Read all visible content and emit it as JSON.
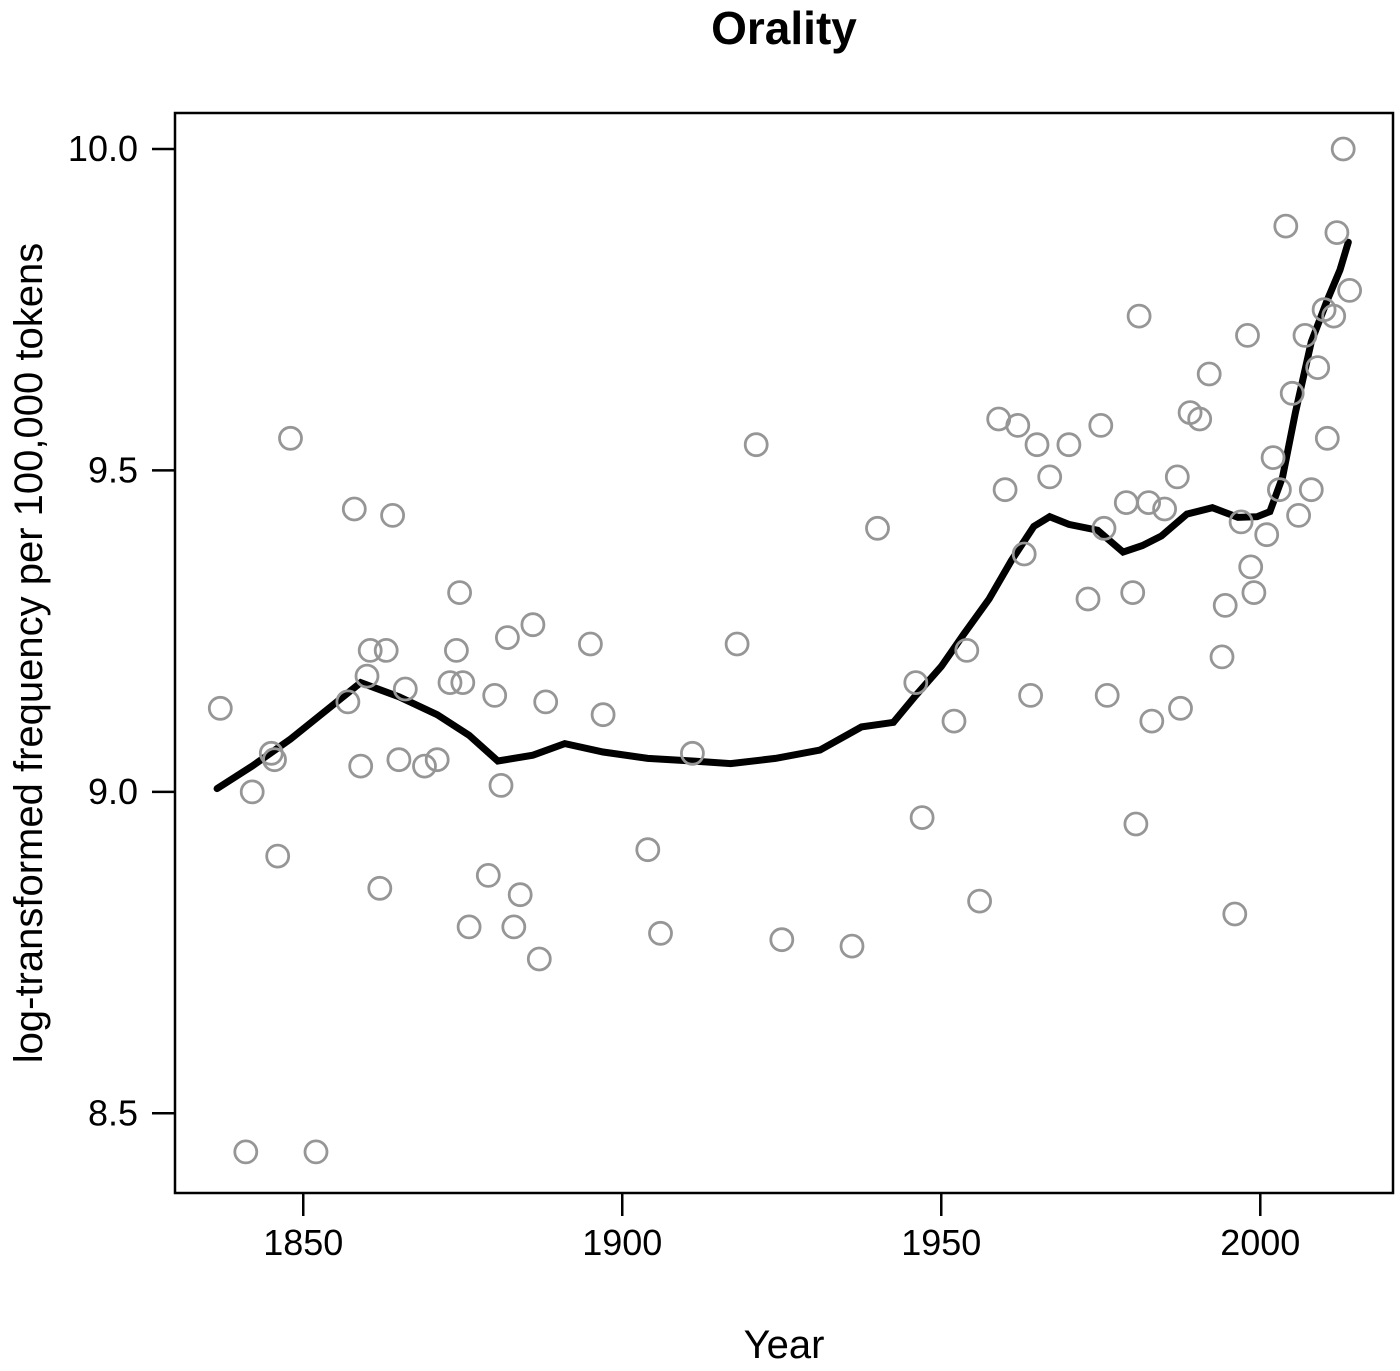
{
  "chart_data": {
    "type": "scatter",
    "title": "Orality",
    "xlabel": "Year",
    "ylabel": "log-transformed frequency per 100,000 tokens",
    "xlim": [
      1829.9,
      2020.8
    ],
    "ylim": [
      8.376,
      10.056
    ],
    "grid": false,
    "legend": "none",
    "point_color": "#969696",
    "trend_color": "#000000",
    "x_ticks": [
      {
        "value": 1850,
        "label": "1850"
      },
      {
        "value": 1900,
        "label": "1900"
      },
      {
        "value": 1950,
        "label": "1950"
      },
      {
        "value": 2000,
        "label": "2000"
      }
    ],
    "y_ticks": [
      {
        "value": 8.5,
        "label": "8.5"
      },
      {
        "value": 9.0,
        "label": "9.0"
      },
      {
        "value": 9.5,
        "label": "9.5"
      },
      {
        "value": 10.0,
        "label": "10.0"
      }
    ],
    "series": [
      {
        "name": "yearly-frequencies",
        "type": "scatter",
        "points": [
          [
            1837,
            9.13
          ],
          [
            1841,
            8.44
          ],
          [
            1842,
            9.0
          ],
          [
            1845,
            9.06
          ],
          [
            1845.5,
            9.05
          ],
          [
            1846,
            8.9
          ],
          [
            1848,
            9.55
          ],
          [
            1852,
            8.44
          ],
          [
            1857,
            9.14
          ],
          [
            1858,
            9.44
          ],
          [
            1859,
            9.04
          ],
          [
            1860,
            9.18
          ],
          [
            1860.5,
            9.22
          ],
          [
            1862,
            8.85
          ],
          [
            1863,
            9.22
          ],
          [
            1864,
            9.43
          ],
          [
            1865,
            9.05
          ],
          [
            1866,
            9.16
          ],
          [
            1869,
            9.04
          ],
          [
            1871,
            9.05
          ],
          [
            1873,
            9.17
          ],
          [
            1874,
            9.22
          ],
          [
            1874.5,
            9.31
          ],
          [
            1875,
            9.17
          ],
          [
            1876,
            8.79
          ],
          [
            1879,
            8.87
          ],
          [
            1880,
            9.15
          ],
          [
            1881,
            9.01
          ],
          [
            1882,
            9.24
          ],
          [
            1883,
            8.79
          ],
          [
            1884,
            8.84
          ],
          [
            1886,
            9.26
          ],
          [
            1887,
            8.74
          ],
          [
            1888,
            9.14
          ],
          [
            1895,
            9.23
          ],
          [
            1897,
            9.12
          ],
          [
            1904,
            8.91
          ],
          [
            1906,
            8.78
          ],
          [
            1911,
            9.06
          ],
          [
            1918,
            9.23
          ],
          [
            1921,
            9.54
          ],
          [
            1925,
            8.77
          ],
          [
            1936,
            8.76
          ],
          [
            1940,
            9.41
          ],
          [
            1946,
            9.17
          ],
          [
            1947,
            8.96
          ],
          [
            1952,
            9.11
          ],
          [
            1954,
            9.22
          ],
          [
            1956,
            8.83
          ],
          [
            1959,
            9.58
          ],
          [
            1960,
            9.47
          ],
          [
            1962,
            9.57
          ],
          [
            1963,
            9.37
          ],
          [
            1964,
            9.15
          ],
          [
            1965,
            9.54
          ],
          [
            1967,
            9.49
          ],
          [
            1970,
            9.54
          ],
          [
            1973,
            9.3
          ],
          [
            1975,
            9.57
          ],
          [
            1975.5,
            9.41
          ],
          [
            1976,
            9.15
          ],
          [
            1979,
            9.45
          ],
          [
            1980,
            9.31
          ],
          [
            1980.5,
            8.95
          ],
          [
            1981,
            9.74
          ],
          [
            1982.5,
            9.45
          ],
          [
            1983,
            9.11
          ],
          [
            1985,
            9.44
          ],
          [
            1987,
            9.49
          ],
          [
            1987.5,
            9.13
          ],
          [
            1989,
            9.59
          ],
          [
            1990.5,
            9.58
          ],
          [
            1992,
            9.65
          ],
          [
            1994,
            9.21
          ],
          [
            1994.5,
            9.29
          ],
          [
            1996,
            8.81
          ],
          [
            1997,
            9.42
          ],
          [
            1998,
            9.71
          ],
          [
            1998.5,
            9.35
          ],
          [
            1999,
            9.31
          ],
          [
            2001,
            9.4
          ],
          [
            2002,
            9.52
          ],
          [
            2003,
            9.47
          ],
          [
            2004,
            9.88
          ],
          [
            2005,
            9.62
          ],
          [
            2006,
            9.43
          ],
          [
            2007,
            9.71
          ],
          [
            2008,
            9.47
          ],
          [
            2009,
            9.66
          ],
          [
            2010,
            9.75
          ],
          [
            2010.5,
            9.55
          ],
          [
            2011.5,
            9.74
          ],
          [
            2012,
            9.87
          ],
          [
            2013,
            10.0
          ],
          [
            2014,
            9.78
          ]
        ]
      },
      {
        "name": "loess-trend",
        "type": "line",
        "points": [
          [
            1836.5,
            9.005
          ],
          [
            1842,
            9.04
          ],
          [
            1848,
            9.082
          ],
          [
            1854,
            9.13
          ],
          [
            1859,
            9.17
          ],
          [
            1865,
            9.148
          ],
          [
            1871,
            9.12
          ],
          [
            1876,
            9.088
          ],
          [
            1880.5,
            9.048
          ],
          [
            1886,
            9.057
          ],
          [
            1891,
            9.075
          ],
          [
            1897,
            9.062
          ],
          [
            1904,
            9.052
          ],
          [
            1911,
            9.048
          ],
          [
            1917,
            9.044
          ],
          [
            1924,
            9.052
          ],
          [
            1931,
            9.065
          ],
          [
            1937.5,
            9.101
          ],
          [
            1942.5,
            9.108
          ],
          [
            1946,
            9.15
          ],
          [
            1950,
            9.195
          ],
          [
            1953.5,
            9.245
          ],
          [
            1957.5,
            9.3
          ],
          [
            1961,
            9.36
          ],
          [
            1964.5,
            9.413
          ],
          [
            1967,
            9.428
          ],
          [
            1970,
            9.416
          ],
          [
            1974.5,
            9.407
          ],
          [
            1978.5,
            9.373
          ],
          [
            1981.5,
            9.383
          ],
          [
            1984.5,
            9.398
          ],
          [
            1988.5,
            9.432
          ],
          [
            1992.5,
            9.442
          ],
          [
            1996.5,
            9.427
          ],
          [
            1999.5,
            9.428
          ],
          [
            2001.5,
            9.436
          ],
          [
            2003.5,
            9.49
          ],
          [
            2005.5,
            9.59
          ],
          [
            2008,
            9.7
          ],
          [
            2010.5,
            9.765
          ],
          [
            2012.5,
            9.812
          ],
          [
            2013.8,
            9.855
          ]
        ]
      }
    ]
  }
}
